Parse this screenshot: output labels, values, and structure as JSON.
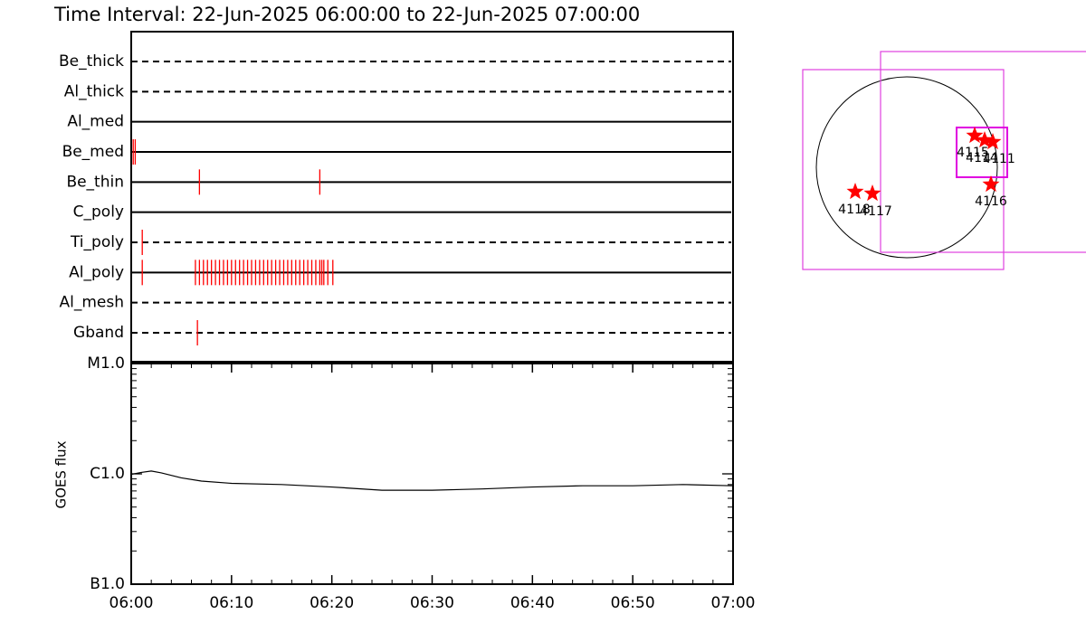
{
  "chart_data": [
    {
      "type": "event",
      "title": "Time Interval: 22-Jun-2025 06:00:00 to 22-Jun-2025 07:00:00",
      "categories": [
        "Be_thick",
        "Al_thick",
        "Al_med",
        "Be_med",
        "Be_thin",
        "C_poly",
        "Ti_poly",
        "Al_poly",
        "Al_mesh",
        "Gband"
      ],
      "line_styles": [
        "dashed",
        "dashed",
        "solid",
        "solid",
        "solid",
        "solid",
        "dashed",
        "solid",
        "dashed",
        "dashed"
      ],
      "events": [
        [],
        [],
        [],
        [
          0.2,
          0.4
        ],
        [
          6.8,
          18.8
        ],
        [],
        [
          1.1
        ],
        [
          1.1,
          6.4,
          6.8,
          7.2,
          7.6,
          8.0,
          8.4,
          8.8,
          9.2,
          9.6,
          10.0,
          10.4,
          10.8,
          11.2,
          11.6,
          12.0,
          12.4,
          12.8,
          13.2,
          13.6,
          14.0,
          14.4,
          14.8,
          15.2,
          15.6,
          16.0,
          16.4,
          16.8,
          17.2,
          17.6,
          18.0,
          18.4,
          18.8,
          19.0,
          19.2,
          19.6,
          20.1
        ],
        [],
        [
          6.6
        ]
      ],
      "color": "#ff0000",
      "xlim": [
        0,
        60
      ]
    },
    {
      "type": "line",
      "ylabel": "GOES flux",
      "x": [
        0,
        1,
        2,
        3,
        5,
        7,
        10,
        15,
        20,
        25,
        30,
        35,
        40,
        45,
        50,
        55,
        60
      ],
      "values": [
        9.9e-07,
        1.03e-06,
        1.06e-06,
        1.02e-06,
        9.2e-07,
        8.6e-07,
        8.2e-07,
        8e-07,
        7.6e-07,
        7.1e-07,
        7.1e-07,
        7.3e-07,
        7.6e-07,
        7.8e-07,
        7.8e-07,
        8e-07,
        7.8e-07
      ],
      "color": "#000000",
      "log_scale": true,
      "ylim": [
        1e-07,
        1e-05
      ],
      "yticks": [
        {
          "value": 1e-07,
          "label": "B1.0"
        },
        {
          "value": 1e-06,
          "label": "C1.0"
        },
        {
          "value": 1e-05,
          "label": "M1.0"
        }
      ],
      "xlim": [
        0,
        60
      ],
      "xticks": [
        {
          "value": 0,
          "label": "06:00"
        },
        {
          "value": 10,
          "label": "06:10"
        },
        {
          "value": 20,
          "label": "06:20"
        },
        {
          "value": 30,
          "label": "06:30"
        },
        {
          "value": 40,
          "label": "06:40"
        },
        {
          "value": 50,
          "label": "06:50"
        },
        {
          "value": 60,
          "label": "07:00"
        }
      ]
    }
  ],
  "solar_map": {
    "regions": [
      {
        "label": "4115"
      },
      {
        "label": "4114"
      },
      {
        "label": "4111"
      },
      {
        "label": "4116"
      },
      {
        "label": "4118"
      },
      {
        "label": "4117"
      }
    ]
  }
}
